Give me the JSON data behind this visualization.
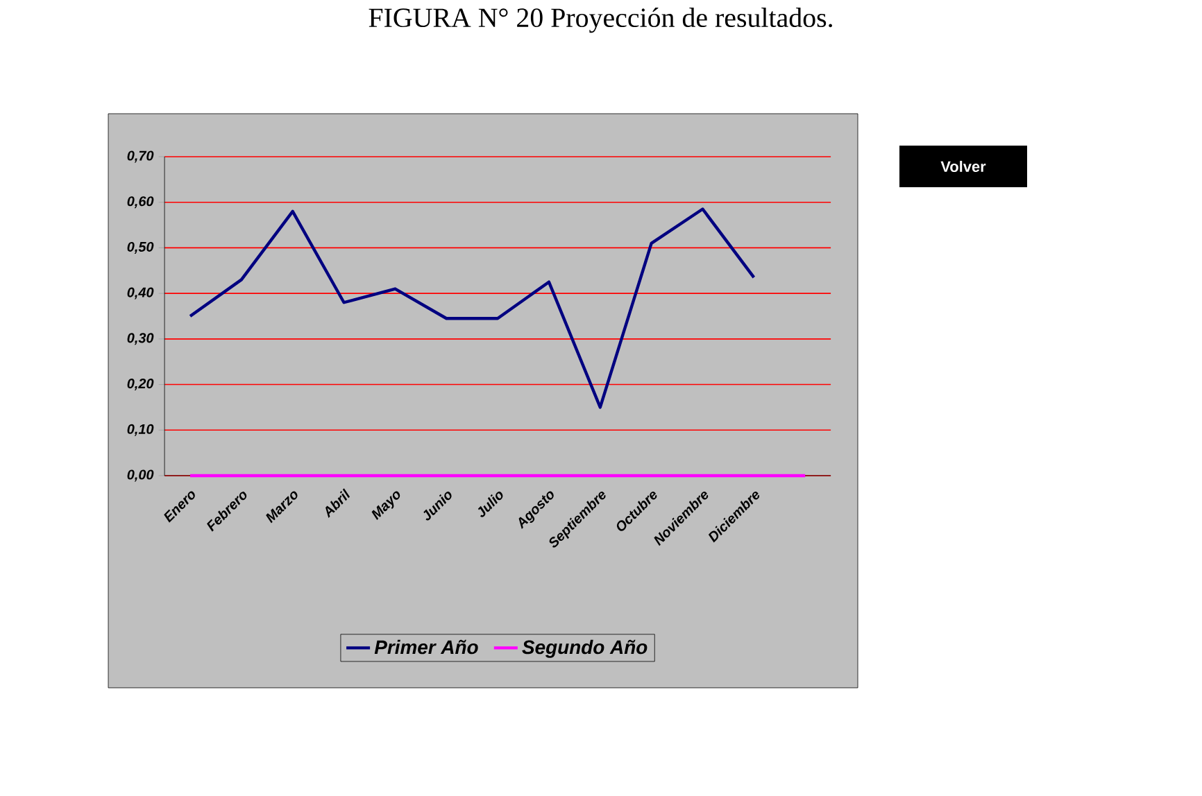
{
  "chart_data": {
    "type": "line",
    "title": "FIGURA N° 20 Proyección de resultados.",
    "categories": [
      "Enero",
      "Febrero",
      "Marzo",
      "Abril",
      "Mayo",
      "Junio",
      "Julio",
      "Agosto",
      "Septiembre",
      "Octubre",
      "Noviembre",
      "Diciembre",
      null
    ],
    "series": [
      {
        "name": "Primer Año",
        "color": "#000080",
        "values": [
          0.35,
          0.43,
          0.58,
          0.38,
          0.41,
          0.345,
          0.345,
          0.425,
          0.15,
          0.51,
          0.585,
          0.435,
          null
        ]
      },
      {
        "name": "Segundo Año",
        "color": "#ff00ff",
        "values": [
          0,
          0,
          0,
          0,
          0,
          0,
          0,
          0,
          0,
          0,
          0,
          0,
          0
        ]
      }
    ],
    "ylim": [
      0,
      0.7
    ],
    "yticks": [
      {
        "value": 0,
        "label": "0,00"
      },
      {
        "value": 0.1,
        "label": "0,10"
      },
      {
        "value": 0.2,
        "label": "0,20"
      },
      {
        "value": 0.3,
        "label": "0,30"
      },
      {
        "value": 0.4,
        "label": "0,40"
      },
      {
        "value": 0.5,
        "label": "0,50"
      },
      {
        "value": 0.6,
        "label": "0,60"
      },
      {
        "value": 0.7,
        "label": "0,70"
      }
    ],
    "grid": "y",
    "legend": "bottom",
    "marker": "none",
    "line_style": "solid",
    "annotations": [
      "Volver"
    ]
  }
}
